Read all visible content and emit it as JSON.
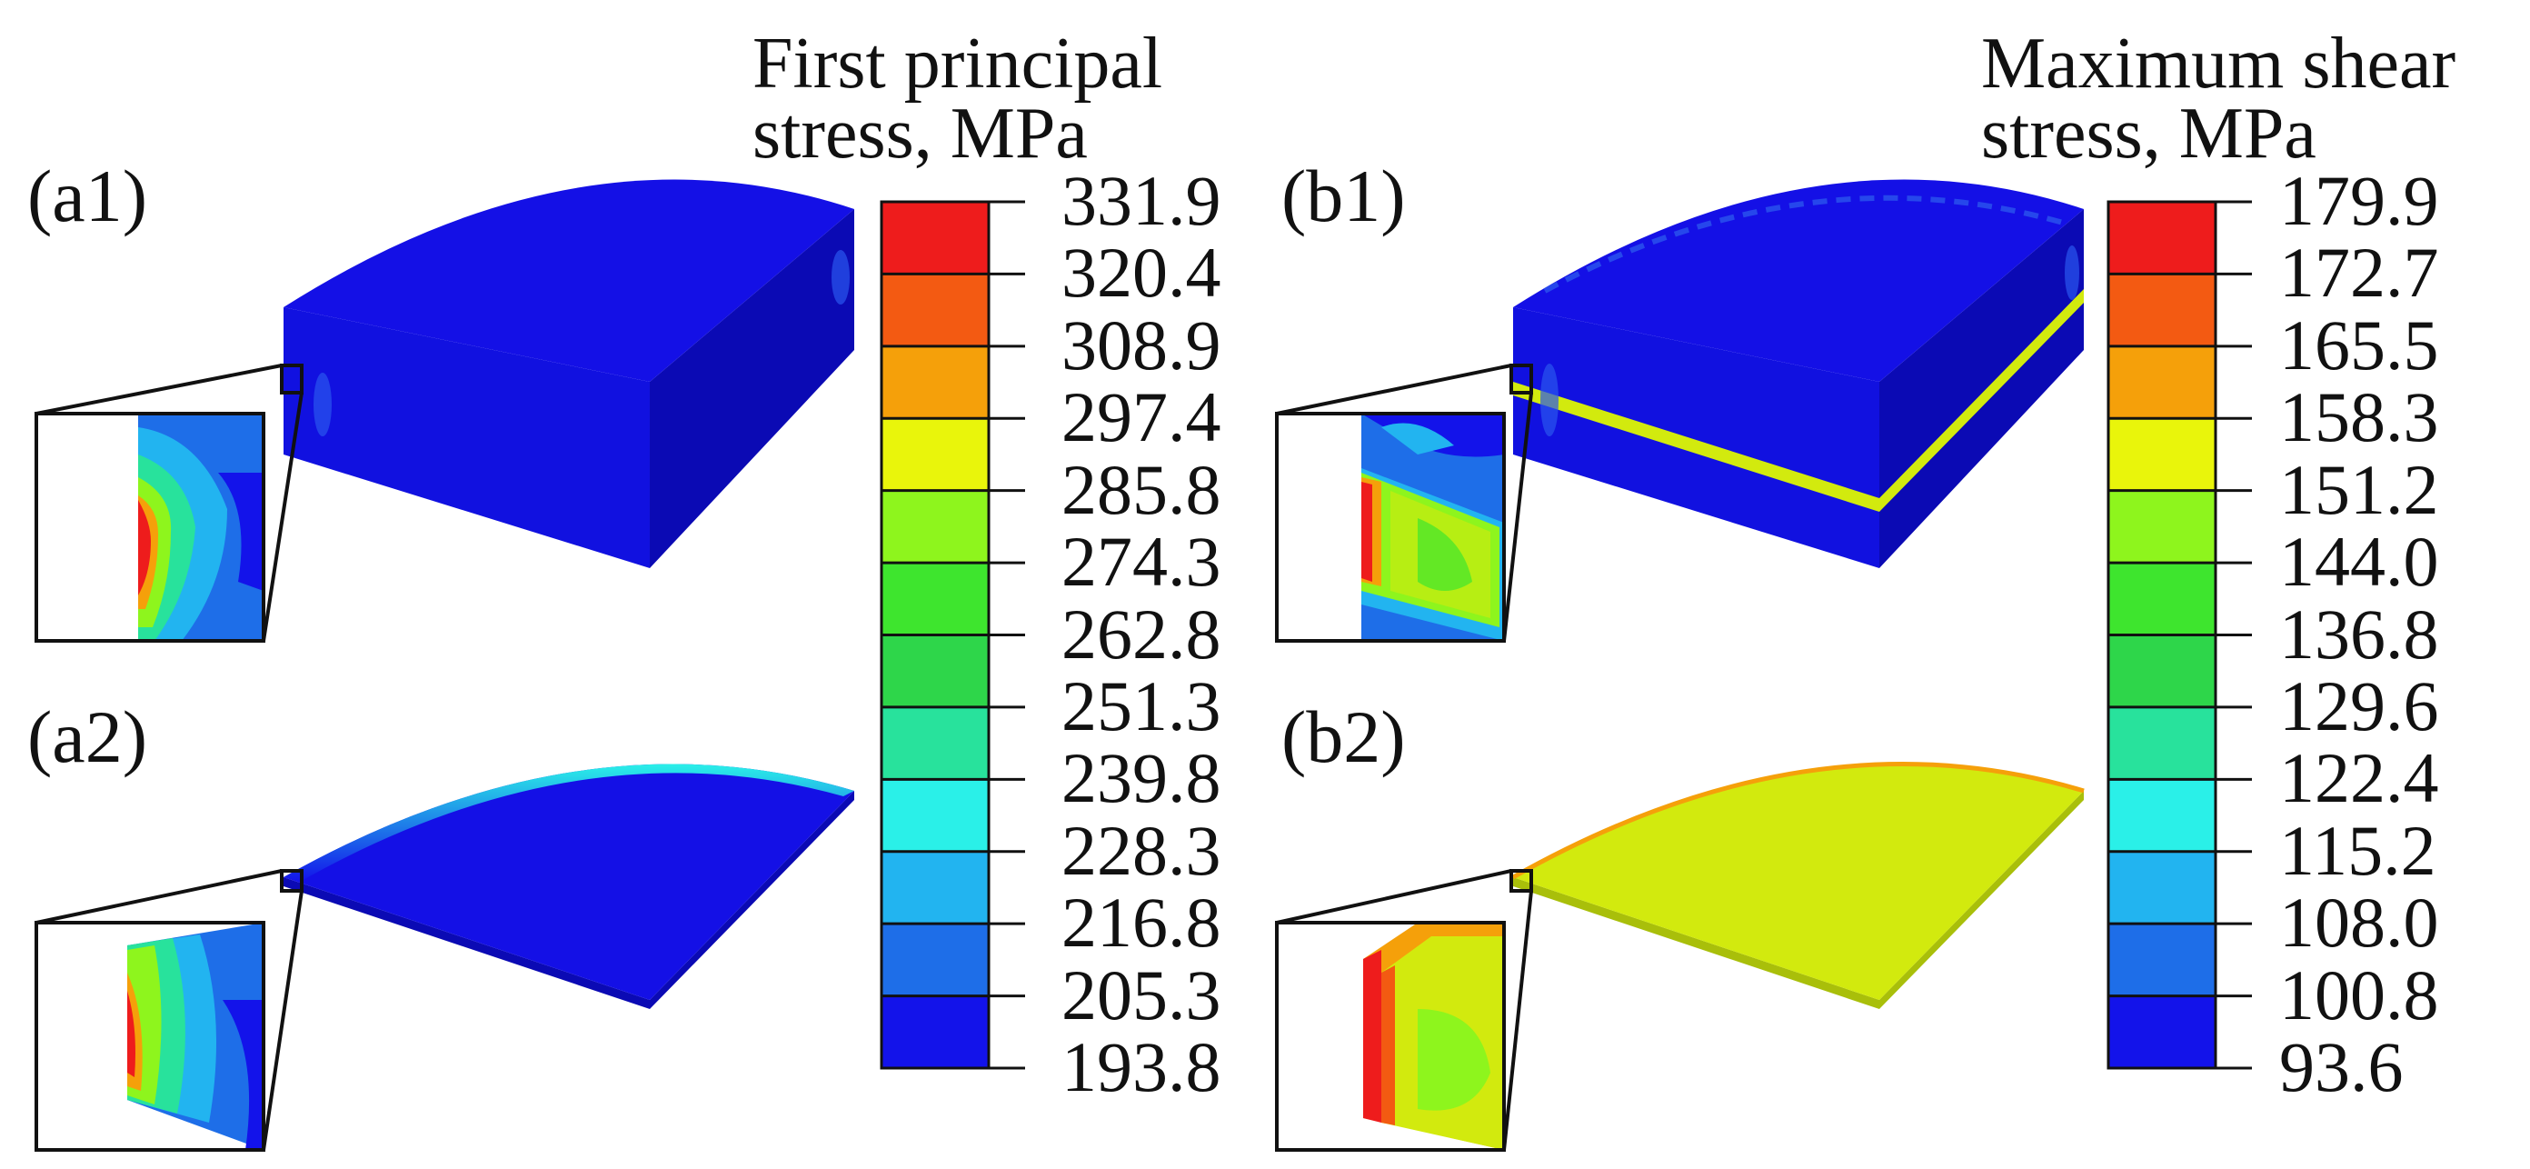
{
  "panels": {
    "a1": "(a1)",
    "a2": "(a2)",
    "b1": "(b1)",
    "b2": "(b2)"
  },
  "legend_left": {
    "title_line1": "First principal",
    "title_line2": "stress, MPa",
    "ticks": [
      "331.9",
      "320.4",
      "308.9",
      "297.4",
      "285.8",
      "274.3",
      "262.8",
      "251.3",
      "239.8",
      "228.3",
      "216.8",
      "205.3",
      "193.8"
    ]
  },
  "legend_right": {
    "title_line1": "Maximum shear",
    "title_line2": "stress, MPa",
    "ticks": [
      "179.9",
      "172.7",
      "165.5",
      "158.3",
      "151.2",
      "144.0",
      "136.8",
      "129.6",
      "122.4",
      "115.2",
      "108.0",
      "100.8",
      "93.6"
    ]
  },
  "colormap": [
    "#ee1c1c",
    "#f35a12",
    "#f5a00a",
    "#e9f50b",
    "#8ef51d",
    "#3ee52e",
    "#2ed64a",
    "#28e29c",
    "#2af0e8",
    "#22b4f0",
    "#1e6ee8",
    "#1313ea"
  ],
  "colors": {
    "low_blue": "#1410e6",
    "dark_blue_side": "#0b0ab4",
    "yellow_plate": "#d2ea0e"
  }
}
